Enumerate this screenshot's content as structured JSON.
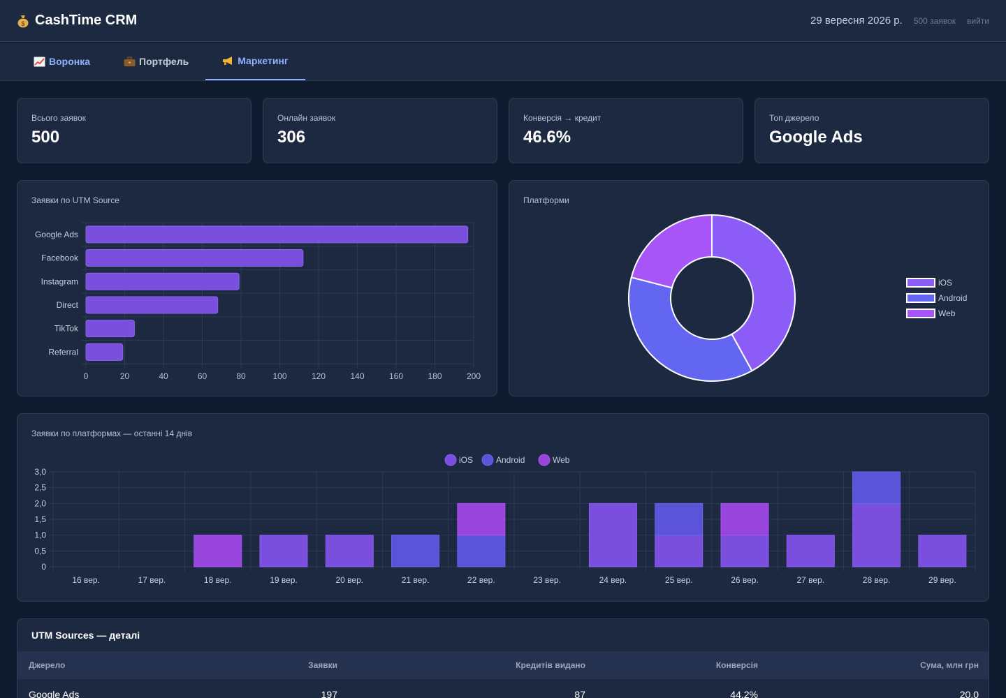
{
  "header": {
    "app_title": "CashTime CRM",
    "date": "29 вересня 2026 р.",
    "requests_count": "500 заявок",
    "logout": "вийти"
  },
  "tabs": [
    {
      "label": "Воронка",
      "icon": "chart-increasing-icon"
    },
    {
      "label": "Портфель",
      "icon": "briefcase-icon"
    },
    {
      "label": "Маркетинг",
      "icon": "megaphone-icon",
      "active": true
    }
  ],
  "kpis": [
    {
      "label": "Всього заявок",
      "value": "500"
    },
    {
      "label": "Онлайн заявок",
      "value": "306"
    },
    {
      "label": "Конверсія → кредит",
      "value": "46.6%"
    },
    {
      "label": "Топ джерело",
      "value": "Google Ads"
    }
  ],
  "colors": {
    "ios": "#8b5cf6",
    "android": "#6366f1",
    "web": "#a855f7",
    "bar": "#7a4fde",
    "accent": "#8fb1ff"
  },
  "chart_data": [
    {
      "type": "bar",
      "orientation": "horizontal",
      "title": "Заявки по UTM Source",
      "categories": [
        "Google Ads",
        "Facebook",
        "Instagram",
        "Direct",
        "TikTok",
        "Referral"
      ],
      "values": [
        197,
        112,
        79,
        68,
        25,
        19
      ],
      "xlim": [
        0,
        200
      ],
      "xticks": [
        "0",
        "20",
        "40",
        "60",
        "80",
        "100",
        "120",
        "140",
        "160",
        "180",
        "200"
      ],
      "grid": true
    },
    {
      "type": "pie",
      "variant": "doughnut",
      "title": "Платформи",
      "labels": [
        "iOS",
        "Android",
        "Web"
      ],
      "values": [
        42,
        37,
        21
      ],
      "legend": "right"
    },
    {
      "type": "bar",
      "stacked": true,
      "title": "Заявки по платформах — останні 14 днів",
      "categories": [
        "16 вер.",
        "17 вер.",
        "18 вер.",
        "19 вер.",
        "20 вер.",
        "21 вер.",
        "22 вер.",
        "23 вер.",
        "24 вер.",
        "25 вер.",
        "26 вер.",
        "27 вер.",
        "28 вер.",
        "29 вер."
      ],
      "series": [
        {
          "name": "iOS",
          "values": [
            0,
            0,
            0,
            1,
            1,
            0,
            0,
            0,
            2,
            1,
            1,
            1,
            2,
            1
          ]
        },
        {
          "name": "Android",
          "values": [
            0,
            0,
            0,
            0,
            0,
            1,
            1,
            0,
            0,
            1,
            0,
            0,
            1,
            0
          ]
        },
        {
          "name": "Web",
          "values": [
            0,
            0,
            1,
            0,
            0,
            0,
            1,
            0,
            0,
            0,
            1,
            0,
            0,
            0
          ]
        }
      ],
      "ylim": [
        0,
        3
      ],
      "yticks": [
        "0",
        "0,5",
        "1,0",
        "1,5",
        "2,0",
        "2,5",
        "3,0"
      ],
      "legend": "top",
      "grid": true
    }
  ],
  "table": {
    "title": "UTM Sources — деталі",
    "columns": [
      "Джерело",
      "Заявки",
      "Кредитів видано",
      "Конверсія",
      "Сума, млн грн"
    ],
    "rows": [
      [
        "Google Ads",
        "197",
        "87",
        "44.2%",
        "20.0"
      ]
    ]
  }
}
